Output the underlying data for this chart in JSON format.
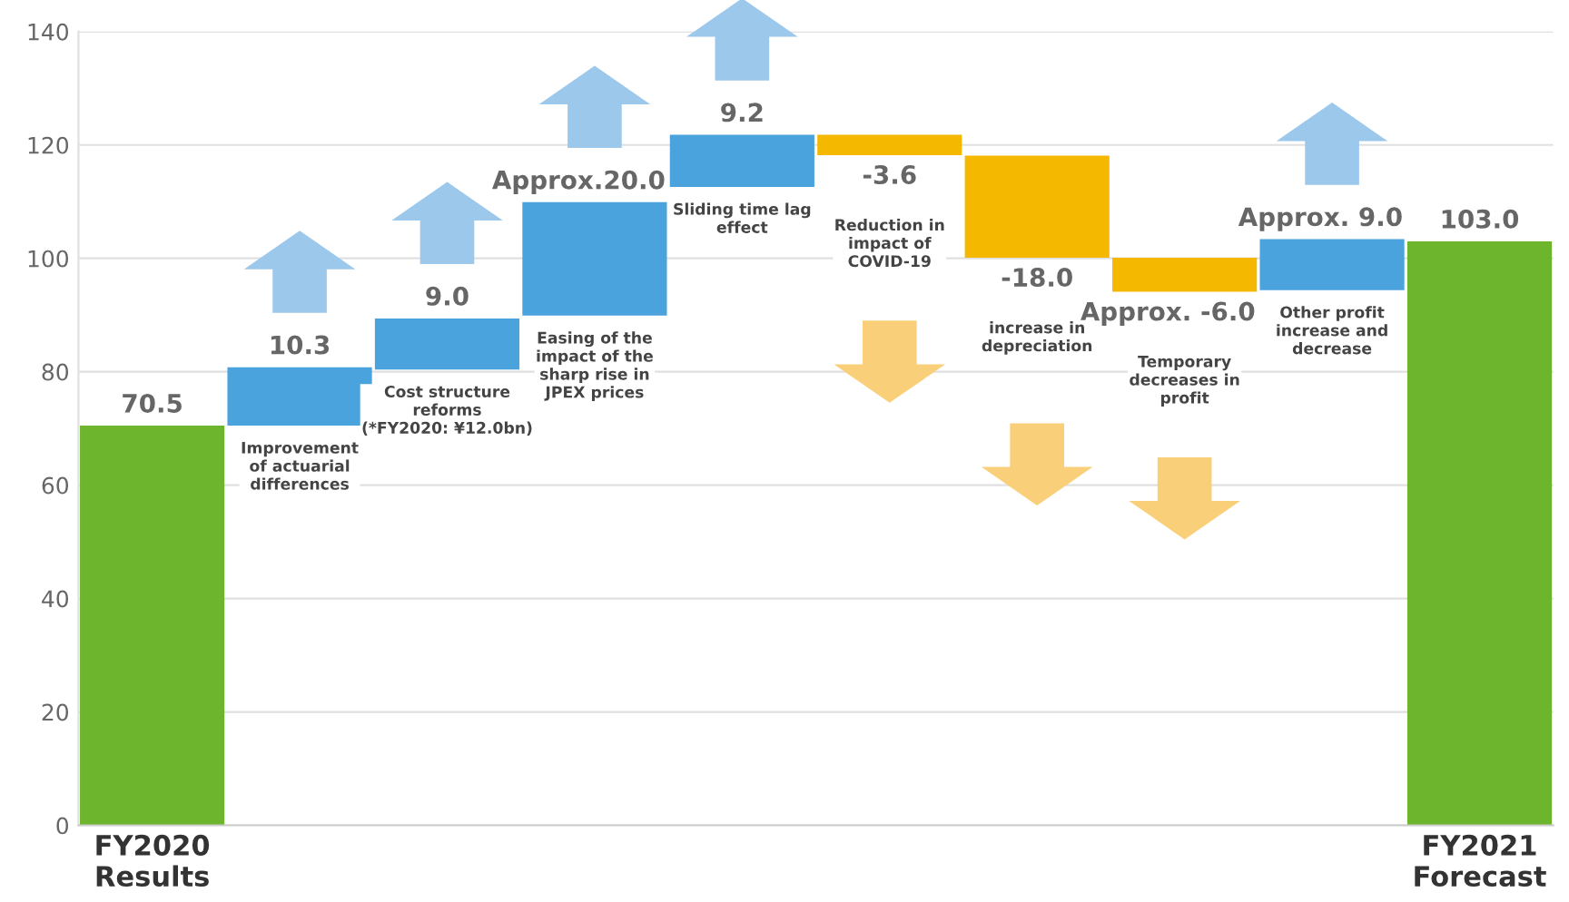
{
  "chart_data": {
    "type": "bar",
    "categories": [
      "FY2020\nResults",
      null,
      null,
      null,
      null,
      null,
      null,
      null,
      null,
      "FY2021\nForecast"
    ],
    "values": [
      70.5,
      10.3,
      9.0,
      20.0,
      9.2,
      -3.6,
      -18.0,
      -6.0,
      9.0,
      103.0
    ],
    "base": [
      0,
      70.5,
      80.4,
      89.9,
      112.6,
      121.8,
      118.1,
      100.1,
      94.4,
      0
    ],
    "colors": [
      "#6cb52d",
      "#4ba3dd",
      "#4ba3dd",
      "#4ba3dd",
      "#4ba3dd",
      "#f5b800",
      "#f5b800",
      "#f5b800",
      "#4ba3dd",
      "#6cb52d"
    ],
    "value_labels": [
      "70.5",
      "10.3",
      "9.0",
      "Approx.20.0",
      "9.2",
      "-3.6",
      "-18.0",
      "Approx. -6.0",
      "Approx. 9.0",
      "103.0"
    ],
    "annotations": [
      "Improvement\nof actuarial\ndifferences",
      "Cost structure\nreforms\n(*FY2020: ¥12.0bn)",
      "Easing of the\nimpact of the\nsharp rise in\nJPEX prices",
      "Sliding time lag\neffect",
      "Reduction in\nimpact of\nCOVID-19",
      "increase in\ndepreciation",
      "Temporary\ndecreases in\nprofit",
      "Other profit\nincrease and\ndecrease"
    ],
    "ylim": [
      0,
      140
    ],
    "yticks": [
      0,
      20,
      40,
      60,
      80,
      100,
      120,
      140
    ],
    "grid": "y"
  }
}
